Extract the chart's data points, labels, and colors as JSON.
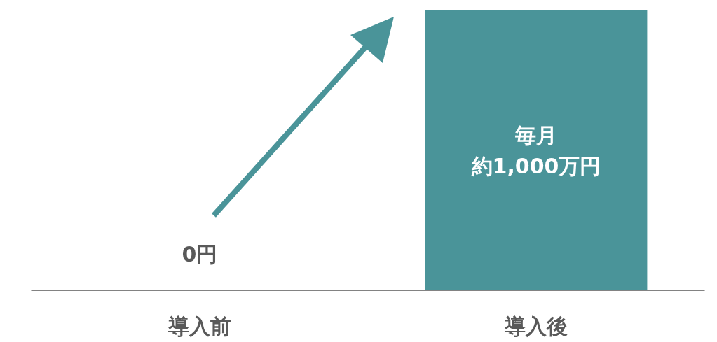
{
  "chart_data": {
    "type": "bar",
    "categories": [
      "導入前",
      "導入後"
    ],
    "values": [
      0,
      1000
    ],
    "value_labels": [
      "0円",
      "毎月約1,000万円"
    ],
    "color": "#4a9499"
  }
}
